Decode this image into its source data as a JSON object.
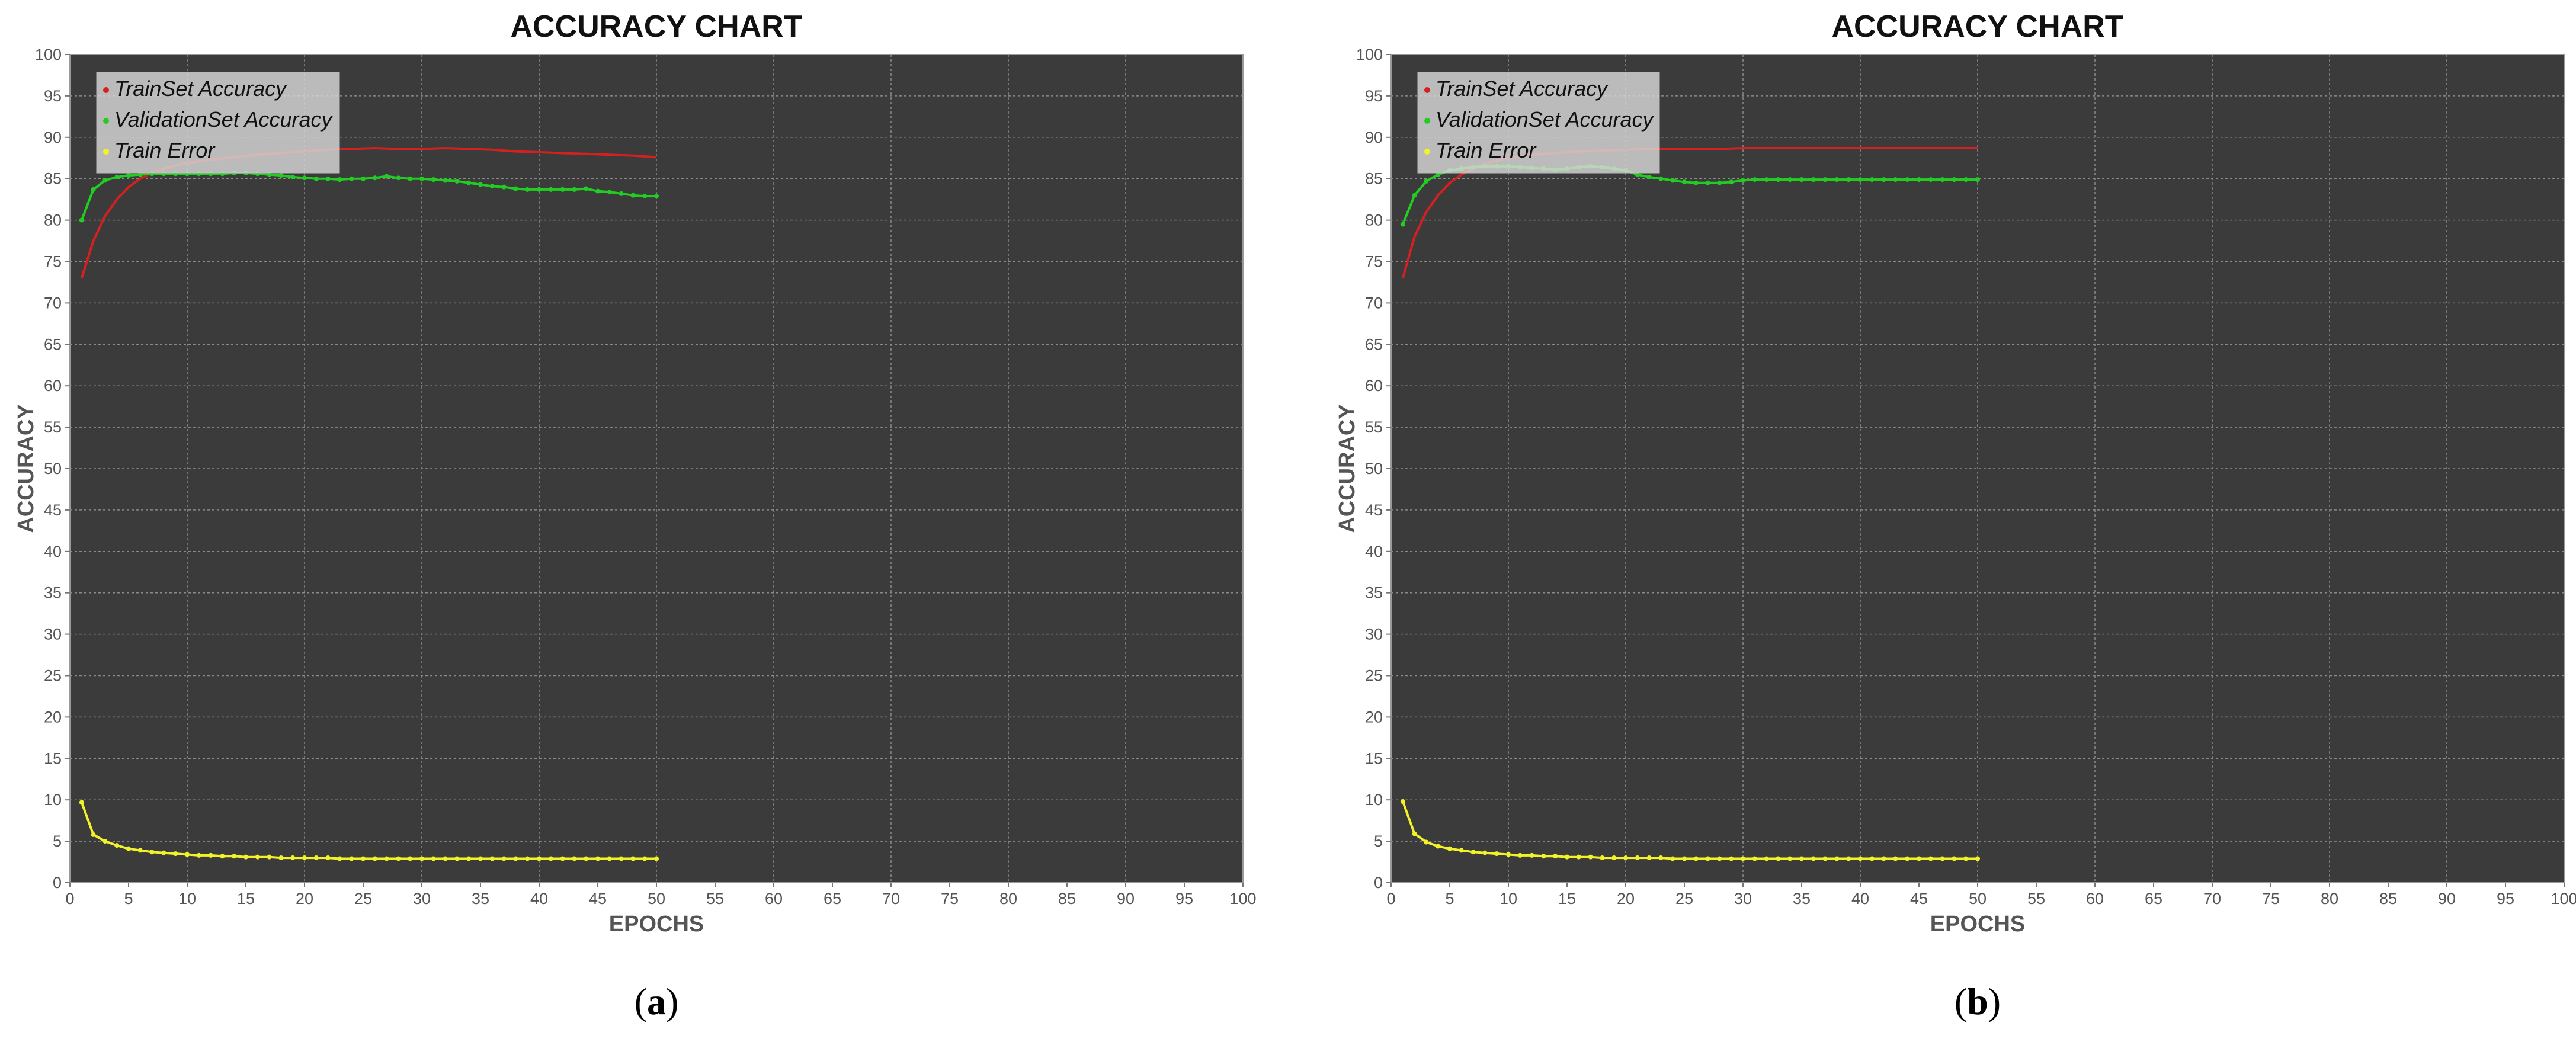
{
  "chart_data": [
    {
      "type": "line",
      "title": "ACCURACY CHART",
      "xlabel": "EPOCHS",
      "ylabel": "ACCURACY",
      "xlim": [
        0,
        100
      ],
      "ylim": [
        0,
        100
      ],
      "xticks": [
        "0",
        "5",
        "10",
        "15",
        "20",
        "25",
        "30",
        "35",
        "40",
        "45",
        "50",
        "55",
        "60",
        "65",
        "70",
        "75",
        "80",
        "85",
        "90",
        "95",
        "100"
      ],
      "yticks": [
        "0",
        "5",
        "10",
        "15",
        "20",
        "25",
        "30",
        "35",
        "40",
        "45",
        "50",
        "55",
        "60",
        "65",
        "70",
        "75",
        "80",
        "85",
        "90",
        "95",
        "100"
      ],
      "grid": true,
      "legend_position": "top-left",
      "caption": {
        "open": "(",
        "letter": "a",
        "close": ")"
      },
      "series": [
        {
          "name": "TrainSet Accuracy",
          "color": "#d42020",
          "markers": false,
          "x": [
            1,
            2,
            3,
            4,
            5,
            6,
            7,
            8,
            9,
            10,
            12,
            14,
            16,
            18,
            20,
            22,
            24,
            26,
            28,
            30,
            32,
            34,
            36,
            38,
            40,
            42,
            44,
            46,
            48,
            50
          ],
          "y": [
            73,
            77.5,
            80.5,
            82.5,
            84,
            85,
            85.7,
            86.2,
            86.6,
            86.9,
            87.3,
            87.6,
            87.9,
            88.1,
            88.3,
            88.5,
            88.6,
            88.7,
            88.6,
            88.6,
            88.7,
            88.6,
            88.5,
            88.3,
            88.2,
            88.1,
            88,
            87.9,
            87.8,
            87.6
          ]
        },
        {
          "name": "ValidationSet Accuracy",
          "color": "#22cc22",
          "markers": true,
          "x": [
            1,
            2,
            3,
            4,
            5,
            6,
            7,
            8,
            9,
            10,
            11,
            12,
            13,
            14,
            15,
            16,
            17,
            18,
            19,
            20,
            21,
            22,
            23,
            24,
            25,
            26,
            27,
            28,
            29,
            30,
            31,
            32,
            33,
            34,
            35,
            36,
            37,
            38,
            39,
            40,
            41,
            42,
            43,
            44,
            45,
            46,
            47,
            48,
            49,
            50
          ],
          "y": [
            80,
            83.7,
            84.8,
            85.2,
            85.4,
            85.5,
            85.6,
            85.6,
            85.6,
            85.6,
            85.6,
            85.6,
            85.6,
            85.7,
            85.7,
            85.6,
            85.5,
            85.4,
            85.2,
            85.1,
            85,
            85,
            84.9,
            85,
            85,
            85.1,
            85.3,
            85.1,
            85,
            85,
            84.9,
            84.8,
            84.7,
            84.5,
            84.3,
            84.1,
            84,
            83.8,
            83.7,
            83.7,
            83.7,
            83.7,
            83.7,
            83.8,
            83.5,
            83.4,
            83.2,
            83,
            82.9,
            82.9
          ]
        },
        {
          "name": "Train Error",
          "color": "#f2f22a",
          "markers": true,
          "x": [
            1,
            2,
            3,
            4,
            5,
            6,
            7,
            8,
            9,
            10,
            11,
            12,
            13,
            14,
            15,
            16,
            17,
            18,
            19,
            20,
            21,
            22,
            23,
            24,
            25,
            26,
            27,
            28,
            29,
            30,
            31,
            32,
            33,
            34,
            35,
            36,
            37,
            38,
            39,
            40,
            41,
            42,
            43,
            44,
            45,
            46,
            47,
            48,
            49,
            50
          ],
          "y": [
            9.7,
            5.8,
            5,
            4.5,
            4.1,
            3.9,
            3.7,
            3.6,
            3.5,
            3.4,
            3.3,
            3.3,
            3.2,
            3.2,
            3.1,
            3.1,
            3.1,
            3,
            3,
            3,
            3,
            3,
            2.9,
            2.9,
            2.9,
            2.9,
            2.9,
            2.9,
            2.9,
            2.9,
            2.9,
            2.9,
            2.9,
            2.9,
            2.9,
            2.9,
            2.9,
            2.9,
            2.9,
            2.9,
            2.9,
            2.9,
            2.9,
            2.9,
            2.9,
            2.9,
            2.9,
            2.9,
            2.9,
            2.9
          ]
        }
      ]
    },
    {
      "type": "line",
      "title": "ACCURACY CHART",
      "xlabel": "EPOCHS",
      "ylabel": "ACCURACY",
      "xlim": [
        0,
        100
      ],
      "ylim": [
        0,
        100
      ],
      "xticks": [
        "0",
        "5",
        "10",
        "15",
        "20",
        "25",
        "30",
        "35",
        "40",
        "45",
        "50",
        "55",
        "60",
        "65",
        "70",
        "75",
        "80",
        "85",
        "90",
        "95",
        "100"
      ],
      "yticks": [
        "0",
        "5",
        "10",
        "15",
        "20",
        "25",
        "30",
        "35",
        "40",
        "45",
        "50",
        "55",
        "60",
        "65",
        "70",
        "75",
        "80",
        "85",
        "90",
        "95",
        "100"
      ],
      "grid": true,
      "legend_position": "top-left",
      "caption": {
        "open": "(",
        "letter": "b",
        "close": ")"
      },
      "series": [
        {
          "name": "TrainSet Accuracy",
          "color": "#d42020",
          "markers": false,
          "x": [
            1,
            2,
            3,
            4,
            5,
            6,
            7,
            8,
            9,
            10,
            12,
            14,
            16,
            18,
            20,
            22,
            24,
            26,
            28,
            30,
            32,
            34,
            36,
            38,
            40,
            42,
            44,
            46,
            48,
            50
          ],
          "y": [
            73,
            78,
            81,
            83,
            84.5,
            85.5,
            86.2,
            86.8,
            87.2,
            87.5,
            87.9,
            88.1,
            88.3,
            88.4,
            88.5,
            88.6,
            88.6,
            88.6,
            88.6,
            88.7,
            88.7,
            88.7,
            88.7,
            88.7,
            88.7,
            88.7,
            88.7,
            88.7,
            88.7,
            88.7
          ]
        },
        {
          "name": "ValidationSet Accuracy",
          "color": "#22cc22",
          "markers": true,
          "x": [
            1,
            2,
            3,
            4,
            5,
            6,
            7,
            8,
            9,
            10,
            11,
            12,
            13,
            14,
            15,
            16,
            17,
            18,
            19,
            20,
            21,
            22,
            23,
            24,
            25,
            26,
            27,
            28,
            29,
            30,
            31,
            32,
            33,
            34,
            35,
            36,
            37,
            38,
            39,
            40,
            41,
            42,
            43,
            44,
            45,
            46,
            47,
            48,
            49,
            50
          ],
          "y": [
            79.5,
            83,
            84.7,
            85.5,
            86,
            86.2,
            86.4,
            86.5,
            86.5,
            86.5,
            86.4,
            86.3,
            86.2,
            86.1,
            86.2,
            86.4,
            86.5,
            86.4,
            86.2,
            86,
            85.5,
            85.2,
            85,
            84.8,
            84.6,
            84.5,
            84.5,
            84.5,
            84.6,
            84.8,
            84.9,
            84.9,
            84.9,
            84.9,
            84.9,
            84.9,
            84.9,
            84.9,
            84.9,
            84.9,
            84.9,
            84.9,
            84.9,
            84.9,
            84.9,
            84.9,
            84.9,
            84.9,
            84.9,
            84.9
          ]
        },
        {
          "name": "Train Error",
          "color": "#f2f22a",
          "markers": true,
          "x": [
            1,
            2,
            3,
            4,
            5,
            6,
            7,
            8,
            9,
            10,
            11,
            12,
            13,
            14,
            15,
            16,
            17,
            18,
            19,
            20,
            21,
            22,
            23,
            24,
            25,
            26,
            27,
            28,
            29,
            30,
            31,
            32,
            33,
            34,
            35,
            36,
            37,
            38,
            39,
            40,
            41,
            42,
            43,
            44,
            45,
            46,
            47,
            48,
            49,
            50
          ],
          "y": [
            9.8,
            5.9,
            4.9,
            4.4,
            4.1,
            3.9,
            3.7,
            3.6,
            3.5,
            3.4,
            3.3,
            3.3,
            3.2,
            3.2,
            3.1,
            3.1,
            3.1,
            3,
            3,
            3,
            3,
            3,
            3,
            2.9,
            2.9,
            2.9,
            2.9,
            2.9,
            2.9,
            2.9,
            2.9,
            2.9,
            2.9,
            2.9,
            2.9,
            2.9,
            2.9,
            2.9,
            2.9,
            2.9,
            2.9,
            2.9,
            2.9,
            2.9,
            2.9,
            2.9,
            2.9,
            2.9,
            2.9,
            2.9
          ]
        }
      ]
    }
  ]
}
